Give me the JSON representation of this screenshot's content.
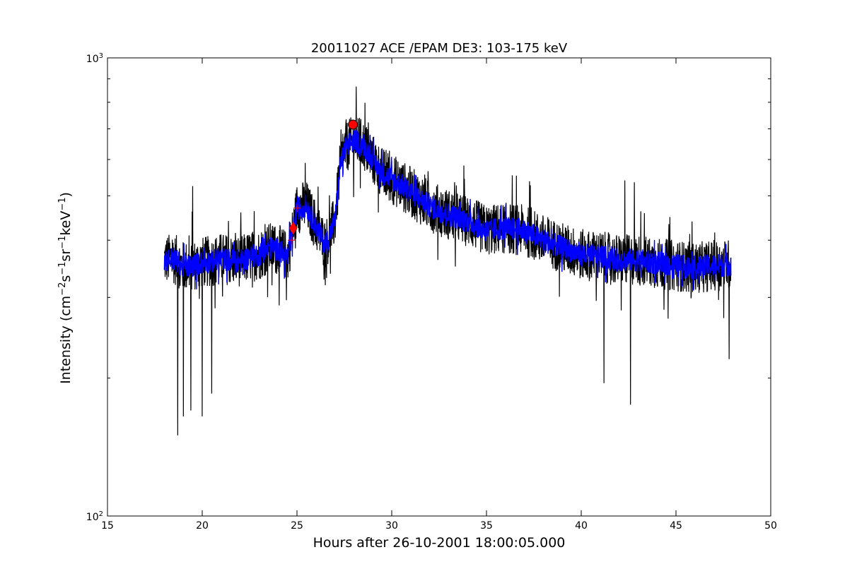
{
  "chart_data": {
    "type": "line",
    "title": "20011027 ACE /EPAM DE3: 103-175 keV",
    "xlabel": "Hours after 26-10-2001 18:00:05.000",
    "ylabel_main": "Intensity (cm",
    "ylabel_parts": [
      {
        "text": "Intensity (cm",
        "sup": false
      },
      {
        "text": "−2",
        "sup": true
      },
      {
        "text": "s",
        "sup": false
      },
      {
        "text": "−1",
        "sup": true
      },
      {
        "text": "sr",
        "sup": false
      },
      {
        "text": "−1",
        "sup": true
      },
      {
        "text": "keV",
        "sup": false
      },
      {
        "text": "−1",
        "sup": true
      },
      {
        "text": ")",
        "sup": false
      }
    ],
    "xlim": [
      15,
      50
    ],
    "ylim": [
      100,
      1000
    ],
    "yscale": "log",
    "grid": false,
    "x_ticks": [
      15,
      20,
      25,
      30,
      35,
      40,
      45,
      50
    ],
    "x_tick_labels": [
      "15",
      "20",
      "25",
      "30",
      "35",
      "40",
      "45",
      "50"
    ],
    "y_major_ticks": [
      {
        "value": 100,
        "base": "10",
        "exp": "2"
      },
      {
        "value": 1000,
        "base": "10",
        "exp": "3"
      }
    ],
    "y_minor_ticks": [
      200,
      300,
      400,
      500,
      600,
      700,
      800,
      900
    ],
    "series": [
      {
        "color": "#000000",
        "envelope": [
          [
            18.0,
            362
          ],
          [
            18.5,
            365
          ],
          [
            19.0,
            350
          ],
          [
            19.5,
            352
          ],
          [
            20.0,
            358
          ],
          [
            20.5,
            360
          ],
          [
            21.0,
            365
          ],
          [
            21.5,
            362
          ],
          [
            22.0,
            360
          ],
          [
            22.5,
            368
          ],
          [
            23.0,
            372
          ],
          [
            23.5,
            385
          ],
          [
            24.0,
            382
          ],
          [
            24.5,
            368
          ],
          [
            24.8,
            420
          ],
          [
            25.0,
            470
          ],
          [
            25.5,
            475
          ],
          [
            26.0,
            430
          ],
          [
            26.5,
            390
          ],
          [
            27.0,
            440
          ],
          [
            27.3,
            590
          ],
          [
            27.6,
            640
          ],
          [
            28.0,
            660
          ],
          [
            28.5,
            645
          ],
          [
            29.0,
            600
          ],
          [
            29.5,
            560
          ],
          [
            30.0,
            545
          ],
          [
            31.0,
            510
          ],
          [
            32.0,
            475
          ],
          [
            33.0,
            455
          ],
          [
            34.0,
            440
          ],
          [
            35.0,
            420
          ],
          [
            36.0,
            425
          ],
          [
            37.0,
            420
          ],
          [
            38.0,
            400
          ],
          [
            39.0,
            385
          ],
          [
            40.0,
            372
          ],
          [
            41.0,
            368
          ],
          [
            42.0,
            362
          ],
          [
            43.0,
            362
          ],
          [
            44.0,
            356
          ],
          [
            45.0,
            352
          ],
          [
            46.0,
            348
          ],
          [
            47.0,
            352
          ],
          [
            47.9,
            354
          ]
        ]
      },
      {
        "color": "#0000ff",
        "envelope": [
          [
            18.0,
            362
          ],
          [
            18.5,
            365
          ],
          [
            19.0,
            350
          ],
          [
            19.5,
            352
          ],
          [
            20.0,
            358
          ],
          [
            20.5,
            360
          ],
          [
            21.0,
            365
          ],
          [
            21.5,
            362
          ],
          [
            22.0,
            360
          ],
          [
            22.5,
            368
          ],
          [
            23.0,
            372
          ],
          [
            23.5,
            385
          ],
          [
            24.0,
            382
          ],
          [
            24.5,
            368
          ],
          [
            24.8,
            420
          ],
          [
            25.0,
            470
          ],
          [
            25.5,
            475
          ],
          [
            26.0,
            430
          ],
          [
            26.5,
            390
          ],
          [
            27.0,
            440
          ],
          [
            27.3,
            590
          ],
          [
            27.6,
            640
          ],
          [
            28.0,
            660
          ],
          [
            28.5,
            645
          ],
          [
            29.0,
            600
          ],
          [
            29.5,
            560
          ],
          [
            30.0,
            545
          ],
          [
            31.0,
            510
          ],
          [
            32.0,
            475
          ],
          [
            33.0,
            455
          ],
          [
            34.0,
            440
          ],
          [
            35.0,
            420
          ],
          [
            36.0,
            425
          ],
          [
            37.0,
            420
          ],
          [
            38.0,
            400
          ],
          [
            39.0,
            385
          ],
          [
            40.0,
            372
          ],
          [
            41.0,
            368
          ],
          [
            42.0,
            362
          ],
          [
            43.0,
            362
          ],
          [
            44.0,
            356
          ],
          [
            45.0,
            352
          ],
          [
            46.0,
            348
          ],
          [
            47.0,
            352
          ],
          [
            47.9,
            354
          ]
        ]
      }
    ],
    "spikes": [
      {
        "x": 18.7,
        "y": 150
      },
      {
        "x": 19.0,
        "y": 165
      },
      {
        "x": 19.4,
        "y": 170
      },
      {
        "x": 20.0,
        "y": 165
      },
      {
        "x": 20.5,
        "y": 185
      },
      {
        "x": 41.2,
        "y": 195
      },
      {
        "x": 42.6,
        "y": 175
      },
      {
        "x": 47.8,
        "y": 220
      },
      {
        "x": 19.5,
        "y": 525
      },
      {
        "x": 28.3,
        "y": 740
      },
      {
        "x": 42.3,
        "y": 540
      },
      {
        "x": 42.8,
        "y": 535
      }
    ],
    "markers": [
      {
        "shape": "circle",
        "x": 27.95,
        "y": 715,
        "color": "#ff0000"
      },
      {
        "shape": "diamond",
        "x": 24.8,
        "y": 425,
        "color": "#ff0000"
      },
      {
        "shape": "plus",
        "x": 25.0,
        "y": 470,
        "color": "#ff0000"
      },
      {
        "shape": "plus",
        "x": 24.7,
        "y": 400,
        "color": "#ff0000"
      }
    ]
  }
}
